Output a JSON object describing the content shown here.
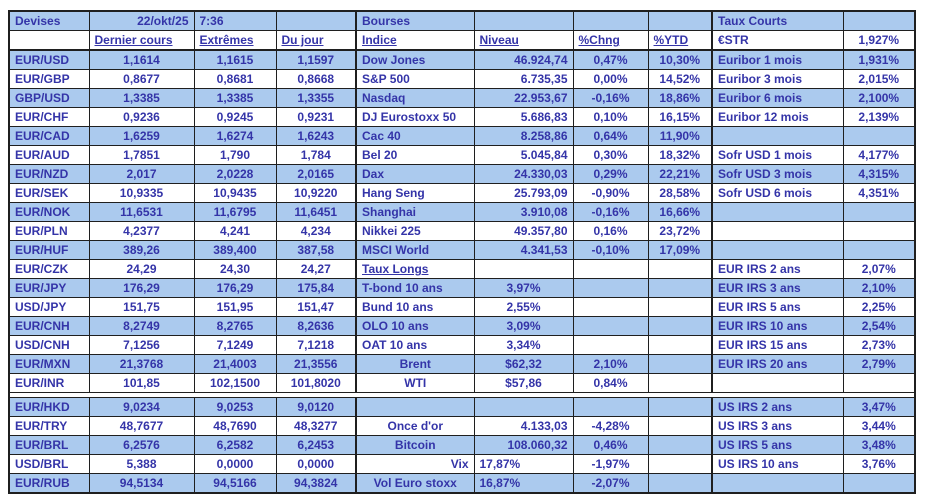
{
  "colors": {
    "row_fill": "#ABCAEE",
    "text": "#3434A8",
    "grid": "#1F1F1F",
    "background": "#FFFFFF"
  },
  "table": {
    "title_row": {
      "devises": "Devises",
      "date": "22/okt/25",
      "time": "7:36",
      "bourses": "Bourses",
      "taux_courts": "Taux Courts"
    },
    "header_row": {
      "dernier_cours": "Dernier cours",
      "extremes": "Extrêmes",
      "du_jour": "Du jour",
      "indice": "Indice",
      "niveau": "Niveau",
      "chng": "%Chng",
      "ytd": "%YTD",
      "estr": "€STR",
      "estr_value": "1,927%"
    },
    "rows": [
      {
        "fx": [
          "EUR/USD",
          "1,1614",
          "1,1615",
          "1,1597"
        ],
        "mid": {
          "label": "Dow Jones",
          "niveau": "46.924,74",
          "chng": "0,47%",
          "ytd": "10,30%"
        },
        "right": {
          "label": "Euribor 1 mois",
          "value": "1,931%"
        }
      },
      {
        "fx": [
          "EUR/GBP",
          "0,8677",
          "0,8681",
          "0,8668"
        ],
        "mid": {
          "label": "S&P 500",
          "niveau": "6.735,35",
          "chng": "0,00%",
          "ytd": "14,52%"
        },
        "right": {
          "label": "Euribor 3 mois",
          "value": "2,015%"
        }
      },
      {
        "fx": [
          "GBP/USD",
          "1,3385",
          "1,3385",
          "1,3355"
        ],
        "mid": {
          "label": "Nasdaq",
          "niveau": "22.953,67",
          "chng": "-0,16%",
          "ytd": "18,86%"
        },
        "right": {
          "label": "Euribor 6 mois",
          "value": "2,100%"
        }
      },
      {
        "fx": [
          "EUR/CHF",
          "0,9236",
          "0,9245",
          "0,9231"
        ],
        "mid": {
          "label": "DJ Eurostoxx 50",
          "niveau": "5.686,83",
          "chng": "0,10%",
          "ytd": "16,15%"
        },
        "right": {
          "label": "Euribor 12 mois",
          "value": "2,139%"
        }
      },
      {
        "fx": [
          "EUR/CAD",
          "1,6259",
          "1,6274",
          "1,6243"
        ],
        "mid": {
          "label": "Cac 40",
          "niveau": "8.258,86",
          "chng": "0,64%",
          "ytd": "11,90%"
        },
        "right": null
      },
      {
        "fx": [
          "EUR/AUD",
          "1,7851",
          "1,790",
          "1,784"
        ],
        "mid": {
          "label": "Bel 20",
          "niveau": "5.045,84",
          "chng": "0,30%",
          "ytd": "18,32%"
        },
        "right": {
          "label": "Sofr USD 1 mois",
          "value": "4,177%"
        }
      },
      {
        "fx": [
          "EUR/NZD",
          "2,017",
          "2,0228",
          "2,0165"
        ],
        "mid": {
          "label": "Dax",
          "niveau": "24.330,03",
          "chng": "0,29%",
          "ytd": "22,21%"
        },
        "right": {
          "label": "Sofr USD 3 mois",
          "value": "4,315%"
        }
      },
      {
        "fx": [
          "EUR/SEK",
          "10,9335",
          "10,9435",
          "10,9220"
        ],
        "mid": {
          "label": "Hang Seng",
          "niveau": "25.793,09",
          "chng": "-0,90%",
          "ytd": "28,58%"
        },
        "right": {
          "label": "Sofr USD 6 mois",
          "value": "4,351%"
        }
      },
      {
        "fx": [
          "EUR/NOK",
          "11,6531",
          "11,6795",
          "11,6451"
        ],
        "mid": {
          "label": "Shanghai",
          "niveau": "3.910,08",
          "chng": "-0,16%",
          "ytd": "16,66%"
        },
        "right": null
      },
      {
        "fx": [
          "EUR/PLN",
          "4,2377",
          "4,241",
          "4,234"
        ],
        "mid": {
          "label": "Nikkei 225",
          "niveau": "49.357,80",
          "chng": "0,16%",
          "ytd": "23,72%"
        },
        "right": null
      },
      {
        "fx": [
          "EUR/HUF",
          "389,26",
          "389,400",
          "387,58"
        ],
        "mid": {
          "label": "MSCI World",
          "niveau": "4.341,53",
          "chng": "-0,10%",
          "ytd": "17,09%"
        },
        "right": null
      },
      {
        "fx": [
          "EUR/CZK",
          "24,29",
          "24,30",
          "24,27"
        ],
        "mid": {
          "label": "Taux Longs",
          "underline": true
        },
        "right": {
          "label": "EUR IRS 2 ans",
          "value": "2,07%"
        }
      },
      {
        "fx": [
          "EUR/JPY",
          "176,29",
          "176,29",
          "175,84"
        ],
        "mid": {
          "label": "T-bond 10 ans",
          "niveau": "3,97%",
          "niveau_align": "center"
        },
        "right": {
          "label": "EUR IRS 3 ans",
          "value": "2,10%"
        }
      },
      {
        "fx": [
          "USD/JPY",
          "151,75",
          "151,95",
          "151,47"
        ],
        "mid": {
          "label": "Bund 10 ans",
          "niveau": "2,55%",
          "niveau_align": "center"
        },
        "right": {
          "label": "EUR IRS 5 ans",
          "value": "2,25%"
        }
      },
      {
        "fx": [
          "EUR/CNH",
          "8,2749",
          "8,2765",
          "8,2636"
        ],
        "mid": {
          "label": "OLO 10 ans",
          "niveau": "3,09%",
          "niveau_align": "center"
        },
        "right": {
          "label": "EUR IRS 10 ans",
          "value": "2,54%"
        }
      },
      {
        "fx": [
          "USD/CNH",
          "7,1256",
          "7,1249",
          "7,1218"
        ],
        "mid": {
          "label": "OAT 10 ans",
          "niveau": "3,34%",
          "niveau_align": "center"
        },
        "right": {
          "label": "EUR IRS 15 ans",
          "value": "2,73%"
        }
      },
      {
        "fx": [
          "EUR/MXN",
          "21,3768",
          "21,4003",
          "21,3556"
        ],
        "mid": {
          "label": "Brent",
          "label_align": "center",
          "niveau": "$62,32",
          "niveau_align": "center",
          "chng": "2,10%"
        },
        "right": {
          "label": "EUR IRS 20 ans",
          "value": "2,79%"
        }
      },
      {
        "fx": [
          "EUR/INR",
          "101,85",
          "102,1500",
          "101,8020"
        ],
        "mid": {
          "label": "WTI",
          "label_align": "center",
          "niveau": "$57,86",
          "niveau_align": "center",
          "chng": "0,84%"
        },
        "right": null
      },
      {
        "spacer_before": true,
        "fx": [
          "EUR/HKD",
          "9,0234",
          "9,0253",
          "9,0120"
        ],
        "mid": null,
        "right": {
          "label": "US IRS 2 ans",
          "value": "3,47%"
        }
      },
      {
        "fx": [
          "EUR/TRY",
          "48,7677",
          "48,7690",
          "48,3277"
        ],
        "mid": {
          "label": "Once d'or",
          "label_align": "center",
          "niveau": "4.133,03",
          "chng": "-4,28%"
        },
        "right": {
          "label": "US IRS 3 ans",
          "value": "3,44%"
        }
      },
      {
        "fx": [
          "EUR/BRL",
          "6,2576",
          "6,2582",
          "6,2453"
        ],
        "mid": {
          "label": "Bitcoin",
          "label_align": "center",
          "niveau": "108.060,32",
          "chng": "0,46%"
        },
        "right": {
          "label": "US IRS 5 ans",
          "value": "3,48%"
        }
      },
      {
        "fx": [
          "USD/BRL",
          "5,388",
          "0,0000",
          "0,0000"
        ],
        "mid": {
          "label": "Vix",
          "label_align": "right",
          "niveau": "17,87%",
          "niveau_align": "left",
          "chng": "-1,97%"
        },
        "right": {
          "label": "US IRS 10 ans",
          "value": "3,76%"
        }
      },
      {
        "fx": [
          "EUR/RUB",
          "94,5134",
          "94,5166",
          "94,3824"
        ],
        "mid": {
          "label": "Vol Euro stoxx",
          "label_align": "center",
          "niveau": "16,87%",
          "niveau_align": "left",
          "chng": "-2,07%"
        },
        "right": null
      }
    ]
  }
}
